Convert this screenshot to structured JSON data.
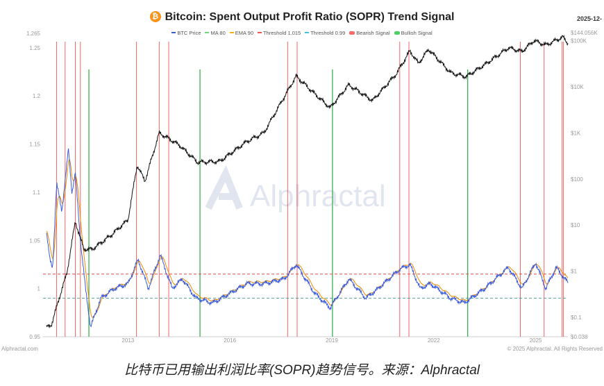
{
  "header": {
    "title": "Bitcoin: Spent Output Profit Ratio (SOPR) Trend Signal",
    "coin_symbol": "₿",
    "date": "2025-12-"
  },
  "legend": [
    {
      "label": "BTC Price",
      "color": "#3b5bdb"
    },
    {
      "label": "MA 80",
      "color": "#69db7c"
    },
    {
      "label": "EMA 90",
      "color": "#fab005"
    },
    {
      "label": "Threshold 1.015",
      "color": "#fa5252"
    },
    {
      "label": "Threshold 0.99",
      "color": "#3bc9db"
    },
    {
      "label": "Bearish Signal",
      "color": "#ff6b6b",
      "box": true
    },
    {
      "label": "Bullish Signal",
      "color": "#51cf66",
      "box": true
    }
  ],
  "footer": {
    "left": "Alphractal.com",
    "right": "© 2025 Alphractal. All Rights Reserved"
  },
  "watermark": "Alphractal",
  "caption": "比特币已用输出利润比率(SOPR)趋势信号。来源：Alphractal",
  "chart_data": {
    "type": "line",
    "title": "Bitcoin: Spent Output Profit Ratio (SOPR) Trend Signal",
    "x_range": [
      2010.5,
      2025.95
    ],
    "x_ticks": [
      "2013",
      "2016",
      "2019",
      "2022",
      "2025"
    ],
    "y_left": {
      "range": [
        0.95,
        1.265
      ],
      "ticks": [
        "0.95",
        "1",
        "1.05",
        "1.1",
        "1.15",
        "1.2",
        "1.25",
        "1.265"
      ]
    },
    "y_right": {
      "scale": "log",
      "range": [
        0.038,
        144056
      ],
      "ticks": [
        "$0.038",
        "$0.1",
        "$1",
        "$10",
        "$100",
        "$1K",
        "$10K",
        "$100K",
        "$144.056K"
      ]
    },
    "thresholds": [
      {
        "name": "Threshold 1.015",
        "value": 1.015,
        "color": "#e03131"
      },
      {
        "name": "Threshold 0.99",
        "value": 0.99,
        "color": "#2b8a7e"
      }
    ],
    "bearish_signals": [
      2010.9,
      2011.15,
      2011.45,
      2011.6,
      2013.25,
      2013.92,
      2014.2,
      2017.7,
      2017.98,
      2021.0,
      2021.27,
      2024.55,
      2025.25,
      2025.78,
      2025.82
    ],
    "bullish_signals": [
      2011.85,
      2015.12,
      2019.02,
      2023.0
    ],
    "price_series": [
      [
        2010.6,
        0.06
      ],
      [
        2010.75,
        0.07
      ],
      [
        2011.0,
        0.3
      ],
      [
        2011.2,
        0.9
      ],
      [
        2011.45,
        12
      ],
      [
        2011.7,
        3
      ],
      [
        2011.95,
        3
      ],
      [
        2012.5,
        6
      ],
      [
        2013.0,
        13
      ],
      [
        2013.27,
        200
      ],
      [
        2013.5,
        90
      ],
      [
        2013.92,
        1000
      ],
      [
        2014.5,
        550
      ],
      [
        2015.05,
        230
      ],
      [
        2015.7,
        240
      ],
      [
        2016.5,
        650
      ],
      [
        2017.0,
        1000
      ],
      [
        2017.95,
        17000
      ],
      [
        2018.5,
        7000
      ],
      [
        2018.95,
        3500
      ],
      [
        2019.5,
        11000
      ],
      [
        2020.2,
        5000
      ],
      [
        2020.9,
        19000
      ],
      [
        2021.3,
        60000
      ],
      [
        2021.55,
        32000
      ],
      [
        2021.85,
        65000
      ],
      [
        2022.5,
        20000
      ],
      [
        2022.95,
        16500
      ],
      [
        2023.5,
        30000
      ],
      [
        2024.2,
        70000
      ],
      [
        2024.6,
        58000
      ],
      [
        2024.95,
        100000
      ],
      [
        2025.3,
        80000
      ],
      [
        2025.8,
        120000
      ],
      [
        2025.95,
        88000
      ]
    ],
    "sopr_series": [
      [
        2010.6,
        1.06
      ],
      [
        2010.7,
        1.03
      ],
      [
        2010.78,
        1.02
      ],
      [
        2010.9,
        1.11
      ],
      [
        2011.05,
        1.08
      ],
      [
        2011.25,
        1.145
      ],
      [
        2011.35,
        1.1
      ],
      [
        2011.45,
        1.12
      ],
      [
        2011.6,
        1.05
      ],
      [
        2011.75,
        1.0
      ],
      [
        2011.9,
        0.96
      ],
      [
        2012.2,
        0.99
      ],
      [
        2012.6,
        1.0
      ],
      [
        2013.0,
        1.005
      ],
      [
        2013.3,
        1.03
      ],
      [
        2013.6,
        1.0
      ],
      [
        2013.95,
        1.035
      ],
      [
        2014.3,
        1.0
      ],
      [
        2014.6,
        1.01
      ],
      [
        2015.0,
        0.99
      ],
      [
        2015.5,
        0.985
      ],
      [
        2016.0,
        0.995
      ],
      [
        2016.5,
        1.005
      ],
      [
        2017.0,
        1.005
      ],
      [
        2017.6,
        1.01
      ],
      [
        2017.95,
        1.025
      ],
      [
        2018.5,
        0.995
      ],
      [
        2018.95,
        0.98
      ],
      [
        2019.5,
        1.01
      ],
      [
        2020.0,
        0.99
      ],
      [
        2020.3,
        0.998
      ],
      [
        2021.0,
        1.02
      ],
      [
        2021.3,
        1.025
      ],
      [
        2021.6,
        1.0
      ],
      [
        2021.9,
        1.005
      ],
      [
        2022.5,
        0.99
      ],
      [
        2022.9,
        0.985
      ],
      [
        2023.5,
        1.0
      ],
      [
        2024.2,
        1.022
      ],
      [
        2024.6,
        1.0
      ],
      [
        2025.0,
        1.027
      ],
      [
        2025.3,
        1.0
      ],
      [
        2025.6,
        1.022
      ],
      [
        2025.95,
        1.006
      ]
    ]
  }
}
